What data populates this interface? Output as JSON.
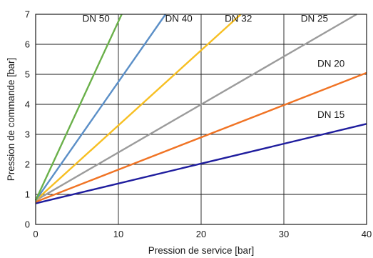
{
  "chart_data": {
    "type": "line",
    "title": "",
    "xlabel": "Pression de service [bar]",
    "ylabel": "Pression de commande [bar]",
    "xlim": [
      0,
      40
    ],
    "ylim": [
      0,
      7
    ],
    "xticks": [
      0,
      10,
      20,
      30,
      40
    ],
    "yticks": [
      0,
      1,
      2,
      3,
      4,
      5,
      6,
      7
    ],
    "grid": true,
    "series": [
      {
        "name": "DN 15",
        "color": "#1f1d9e",
        "points": [
          [
            0,
            0.7
          ],
          [
            40,
            3.35
          ]
        ]
      },
      {
        "name": "DN 20",
        "color": "#f07324",
        "points": [
          [
            0,
            0.75
          ],
          [
            40,
            5.05
          ]
        ]
      },
      {
        "name": "DN 25",
        "color": "#9b9b9b",
        "points": [
          [
            0,
            0.8
          ],
          [
            38.8,
            7.0
          ]
        ]
      },
      {
        "name": "DN 32",
        "color": "#f7bf22",
        "points": [
          [
            0,
            0.8
          ],
          [
            24.8,
            7.0
          ]
        ]
      },
      {
        "name": "DN 40",
        "color": "#5b8fc7",
        "points": [
          [
            0,
            0.8
          ],
          [
            15.7,
            7.0
          ]
        ]
      },
      {
        "name": "DN 50",
        "color": "#6ab04a",
        "points": [
          [
            0,
            0.8
          ],
          [
            10.4,
            7.0
          ]
        ]
      }
    ],
    "annotations": [
      {
        "text": "DN 15",
        "series": 0,
        "x": 35.7,
        "y": 3.55
      },
      {
        "text": "DN 20",
        "series": 1,
        "x": 35.7,
        "y": 5.25
      },
      {
        "text": "DN 25",
        "series": 2,
        "x": 33.7,
        "y": 6.75
      },
      {
        "text": "DN 32",
        "series": 3,
        "x": 24.5,
        "y": 6.75
      },
      {
        "text": "DN 40",
        "series": 4,
        "x": 17.3,
        "y": 6.75
      },
      {
        "text": "DN 50",
        "series": 5,
        "x": 7.3,
        "y": 6.75
      }
    ]
  }
}
